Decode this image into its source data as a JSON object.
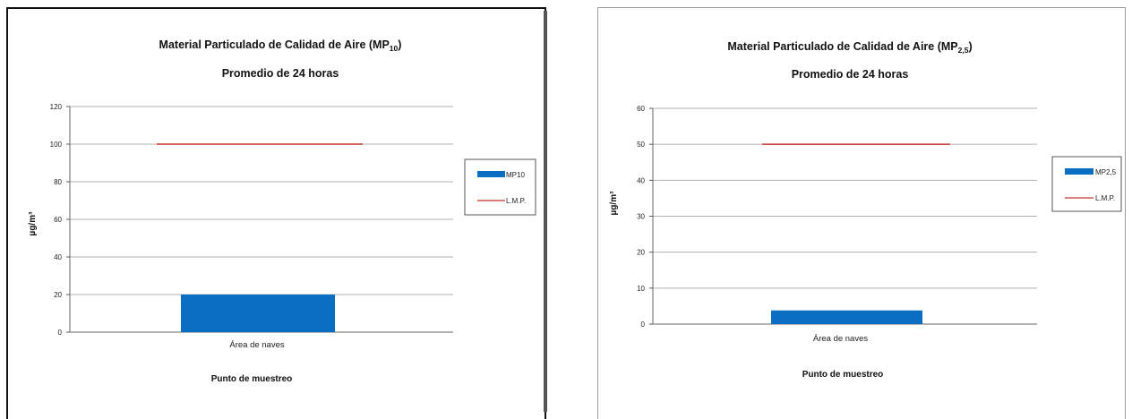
{
  "colors": {
    "bar": "#0a6fc2",
    "limit_line": "#c8302a",
    "grid": "#b0b0b0"
  },
  "chart_data": [
    {
      "type": "bar",
      "title_main": "Material Particulado de Calidad de Aire (MP",
      "title_sub": "10",
      "title_close": ")",
      "title_line2": "Promedio de 24 horas",
      "xlabel": "Punto de muestreo",
      "ylabel": "µg/m³",
      "categories": [
        "Área de naves"
      ],
      "series": [
        {
          "name": "MP10",
          "kind": "bar",
          "values": [
            20
          ]
        },
        {
          "name": "L.M.P.",
          "kind": "line",
          "values": [
            100
          ]
        }
      ],
      "ylim": [
        0,
        120
      ],
      "yticks": [
        "0",
        "20",
        "40",
        "60",
        "80",
        "100",
        "120"
      ],
      "grid": true,
      "legend": "right"
    },
    {
      "type": "bar",
      "title_main": "Material Particulado de Calidad de Aire (MP",
      "title_sub": "2,5",
      "title_close": ")",
      "title_line2": "Promedio de 24 horas",
      "xlabel": "Punto de muestreo",
      "ylabel": "µg/m³",
      "categories": [
        "Área de naves"
      ],
      "series": [
        {
          "name": "MP2,5",
          "kind": "bar",
          "values": [
            3.8
          ]
        },
        {
          "name": "L.M.P.",
          "kind": "line",
          "values": [
            50
          ]
        }
      ],
      "ylim": [
        0,
        60
      ],
      "yticks": [
        "0",
        "10",
        "20",
        "30",
        "40",
        "50",
        "60"
      ],
      "grid": true,
      "legend": "right"
    }
  ]
}
